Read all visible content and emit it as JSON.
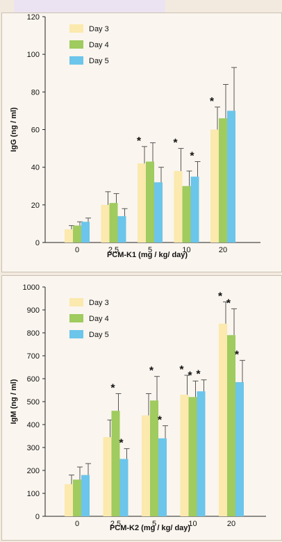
{
  "chart_data": [
    {
      "type": "bar",
      "xlabel": "PCM-K1 (mg / kg/ day)",
      "ylabel": "IgG (ng / ml)",
      "ylim": [
        0,
        120
      ],
      "yticks": [
        0,
        20,
        40,
        60,
        80,
        100,
        120
      ],
      "categories": [
        "0",
        "2.5",
        "5",
        "10",
        "20"
      ],
      "legend_position": "top-left",
      "grid": false,
      "series": [
        {
          "name": "Day 3",
          "color": "#fbe9ad",
          "values": [
            7,
            20,
            42,
            38,
            60
          ],
          "errors": [
            2,
            7,
            9,
            12,
            12
          ],
          "significant": [
            false,
            false,
            true,
            true,
            true
          ]
        },
        {
          "name": "Day 4",
          "color": "#9fcb5f",
          "values": [
            9,
            21,
            43,
            30,
            66
          ],
          "errors": [
            2,
            5,
            10,
            8,
            18
          ],
          "significant": [
            false,
            false,
            false,
            false,
            false
          ]
        },
        {
          "name": "Day 5",
          "color": "#6cc5ea",
          "values": [
            11,
            14,
            32,
            35,
            70
          ],
          "errors": [
            2,
            4,
            8,
            8,
            23
          ],
          "significant": [
            false,
            false,
            false,
            true,
            false
          ]
        }
      ]
    },
    {
      "type": "bar",
      "xlabel": "PCM-K2 (mg / kg/ day)",
      "ylabel": "IgM (ng / ml)",
      "ylim": [
        0,
        1000
      ],
      "yticks": [
        0,
        100,
        200,
        300,
        400,
        500,
        600,
        700,
        800,
        900,
        1000
      ],
      "categories": [
        "0",
        "2.5",
        "5",
        "10",
        "20"
      ],
      "legend_position": "top-left",
      "grid": false,
      "series": [
        {
          "name": "Day 3",
          "color": "#fbe9ad",
          "values": [
            140,
            345,
            440,
            530,
            840
          ],
          "errors": [
            40,
            75,
            95,
            85,
            95
          ],
          "significant": [
            false,
            false,
            false,
            true,
            true
          ]
        },
        {
          "name": "Day 4",
          "color": "#9fcb5f",
          "values": [
            160,
            460,
            505,
            520,
            790
          ],
          "errors": [
            55,
            75,
            105,
            70,
            115
          ],
          "significant": [
            false,
            true,
            true,
            true,
            true
          ]
        },
        {
          "name": "Day 5",
          "color": "#6cc5ea",
          "values": [
            180,
            250,
            340,
            545,
            585
          ],
          "errors": [
            50,
            45,
            55,
            50,
            95
          ],
          "significant": [
            false,
            true,
            true,
            true,
            true
          ]
        }
      ]
    }
  ]
}
